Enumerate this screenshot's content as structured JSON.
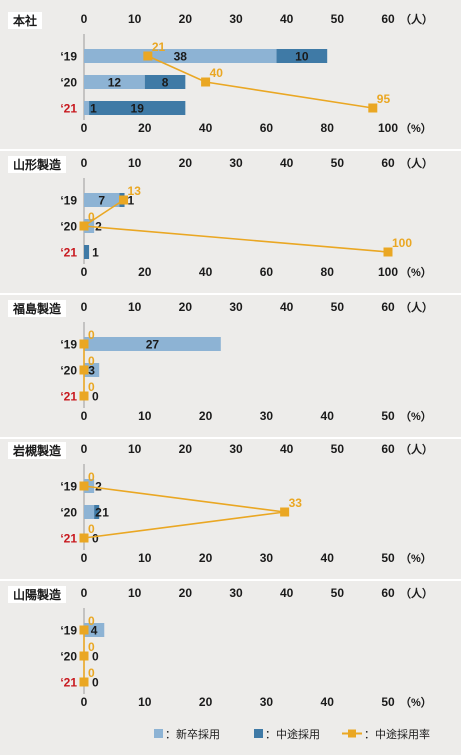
{
  "colors": {
    "new_grad": "#8db3d4",
    "mid_career": "#3f7aa6",
    "rate": "#eaa723",
    "year_highlight": "#c8181e",
    "text": "#1a1a1a",
    "divider": "#ffffff",
    "label_bg": "#ffffff"
  },
  "legend": {
    "new_grad": "：新卒採用",
    "mid_career": "：中途採用",
    "rate": "：中途採用率"
  },
  "chart_data": [
    {
      "type": "bar",
      "title": "本社",
      "categories": [
        "'19",
        "'20",
        "'21"
      ],
      "categories_display": [
        "‘19",
        "‘20",
        "‘21"
      ],
      "highlight_category": "'21",
      "stacked": true,
      "orientation": "horizontal",
      "top_axis": {
        "ticks": [
          "0",
          "10",
          "20",
          "30",
          "40",
          "50",
          "60"
        ],
        "unit": "（人）",
        "range": [
          0,
          60
        ]
      },
      "bottom_axis": {
        "ticks": [
          "0",
          "20",
          "40",
          "60",
          "80",
          "100"
        ],
        "unit": "（%）",
        "range": [
          0,
          100
        ]
      },
      "series": [
        {
          "name": "新卒採用",
          "values": [
            38,
            12,
            1
          ]
        },
        {
          "name": "中途採用",
          "values": [
            10,
            8,
            19
          ]
        },
        {
          "name": "中途採用率",
          "values": [
            21,
            40,
            95
          ]
        }
      ]
    },
    {
      "type": "bar",
      "title": "山形製造",
      "categories": [
        "'19",
        "'20",
        "'21"
      ],
      "categories_display": [
        "‘19",
        "‘20",
        "‘21"
      ],
      "highlight_category": "'21",
      "stacked": true,
      "orientation": "horizontal",
      "top_axis": {
        "ticks": [
          "0",
          "10",
          "20",
          "30",
          "40",
          "50",
          "60"
        ],
        "unit": "（人）",
        "range": [
          0,
          60
        ]
      },
      "bottom_axis": {
        "ticks": [
          "0",
          "20",
          "40",
          "60",
          "80",
          "100"
        ],
        "unit": "（%）",
        "range": [
          0,
          100
        ]
      },
      "series": [
        {
          "name": "新卒採用",
          "values": [
            7,
            2,
            0
          ]
        },
        {
          "name": "中途採用",
          "values": [
            1,
            0,
            1
          ]
        },
        {
          "name": "中途採用率",
          "values": [
            13,
            0,
            100
          ]
        }
      ]
    },
    {
      "type": "bar",
      "title": "福島製造",
      "categories": [
        "'19",
        "'20",
        "'21"
      ],
      "categories_display": [
        "‘19",
        "‘20",
        "‘21"
      ],
      "highlight_category": "'21",
      "stacked": true,
      "orientation": "horizontal",
      "top_axis": {
        "ticks": [
          "0",
          "10",
          "20",
          "30",
          "40",
          "50",
          "60"
        ],
        "unit": "（人）",
        "range": [
          0,
          60
        ]
      },
      "bottom_axis": {
        "ticks": [
          "0",
          "10",
          "20",
          "30",
          "40",
          "50"
        ],
        "unit": "（%）",
        "range": [
          0,
          50
        ]
      },
      "series": [
        {
          "name": "新卒採用",
          "values": [
            27,
            3,
            0
          ]
        },
        {
          "name": "中途採用",
          "values": [
            0,
            0,
            0
          ]
        },
        {
          "name": "中途採用率",
          "values": [
            0,
            0,
            0
          ]
        }
      ]
    },
    {
      "type": "bar",
      "title": "岩槻製造",
      "categories": [
        "'19",
        "'20",
        "'21"
      ],
      "categories_display": [
        "‘19",
        "‘20",
        "‘21"
      ],
      "highlight_category": "'21",
      "stacked": true,
      "orientation": "horizontal",
      "top_axis": {
        "ticks": [
          "0",
          "10",
          "20",
          "30",
          "40",
          "50",
          "60"
        ],
        "unit": "（人）",
        "range": [
          0,
          60
        ]
      },
      "bottom_axis": {
        "ticks": [
          "0",
          "10",
          "20",
          "30",
          "40",
          "50"
        ],
        "unit": "（%）",
        "range": [
          0,
          50
        ]
      },
      "series": [
        {
          "name": "新卒採用",
          "values": [
            2,
            2,
            0
          ]
        },
        {
          "name": "中途採用",
          "values": [
            0,
            1,
            0
          ]
        },
        {
          "name": "中途採用率",
          "values": [
            0,
            33,
            0
          ]
        }
      ]
    },
    {
      "type": "bar",
      "title": "山陽製造",
      "categories": [
        "'19",
        "'20",
        "'21"
      ],
      "categories_display": [
        "‘19",
        "‘20",
        "‘21"
      ],
      "highlight_category": "'21",
      "stacked": true,
      "orientation": "horizontal",
      "top_axis": {
        "ticks": [
          "0",
          "10",
          "20",
          "30",
          "40",
          "50",
          "60"
        ],
        "unit": "（人）",
        "range": [
          0,
          60
        ]
      },
      "bottom_axis": {
        "ticks": [
          "0",
          "10",
          "20",
          "30",
          "40",
          "50"
        ],
        "unit": "（%）",
        "range": [
          0,
          50
        ]
      },
      "series": [
        {
          "name": "新卒採用",
          "values": [
            4,
            0,
            0
          ]
        },
        {
          "name": "中途採用",
          "values": [
            0,
            0,
            0
          ]
        },
        {
          "name": "中途採用率",
          "values": [
            0,
            0,
            0
          ]
        }
      ]
    }
  ]
}
